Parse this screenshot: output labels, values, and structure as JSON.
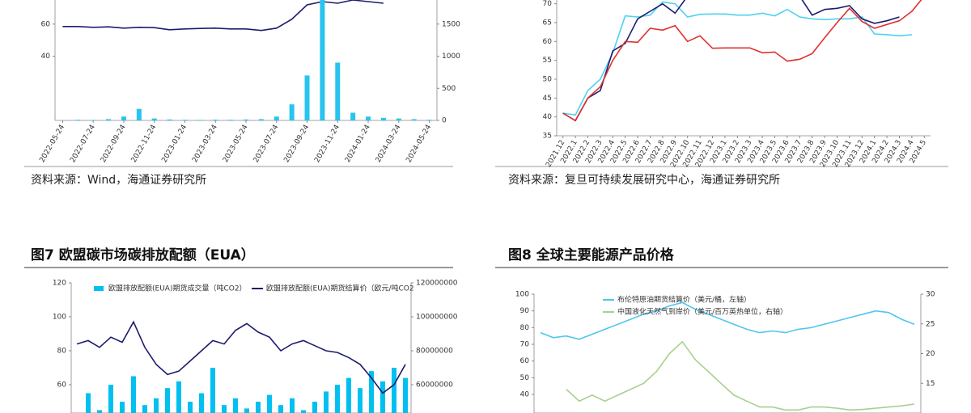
{
  "chart_data": [
    {
      "type": "combo",
      "categories": [
        "2022-05-24",
        null,
        "2022-07-24",
        null,
        "2022-09-24",
        null,
        "2022-11-24",
        null,
        "2023-01-24",
        null,
        "2023-03-24",
        null,
        "2023-05-24",
        null,
        "2023-07-24",
        null,
        "2023-09-24",
        null,
        "2023-11-24",
        null,
        "2024-01-24",
        null,
        "2024-03-24",
        null,
        "2024-05-24"
      ],
      "ylim": [
        0,
        75
      ],
      "yticks": [
        40,
        60
      ],
      "y2lim": [
        0,
        1875
      ],
      "y2ticks": [
        0,
        500,
        1000,
        1500
      ],
      "series": [
        {
          "type": "line",
          "color": "#1c1c6e",
          "values": [
            58.5,
            58.5,
            58,
            58.3,
            57.5,
            58,
            57.8,
            56.5,
            57,
            57.3,
            57.5,
            57,
            57,
            56,
            57.5,
            63,
            72,
            74,
            73,
            75,
            74,
            73,
            null,
            null,
            null
          ]
        },
        {
          "type": "bar",
          "axis": "y2",
          "color": "#29c3ef",
          "values": [
            5,
            10,
            8,
            20,
            60,
            180,
            30,
            15,
            10,
            8,
            12,
            10,
            15,
            20,
            60,
            250,
            700,
            1875,
            900,
            120,
            60,
            40,
            30,
            20,
            10
          ]
        }
      ],
      "source": "资料来源：Wind，海通证券研究所"
    },
    {
      "type": "line",
      "categories": [
        "2021.12",
        "2022.1",
        "2022.2",
        "2022.3",
        "2022.4",
        "2022.5",
        "2022.6",
        "2022.7",
        "2022.8",
        "2022.9",
        "2022.10",
        "2022.11",
        "2022.12",
        "2023.1",
        "2023.2",
        "2023.3",
        "2023.4",
        "2023.5",
        "2023.6",
        "2023.7",
        "2023.8",
        "2023.9",
        "2023.10",
        "2023.11",
        "2023.12",
        "2024.1",
        "2024.2",
        "2024.3",
        "2024.4",
        "2024.5"
      ],
      "ylim": [
        35,
        71
      ],
      "yticks": [
        35,
        40,
        45,
        50,
        55,
        60,
        65,
        70
      ],
      "series": [
        {
          "color": "#4dd2f0",
          "values": [
            41,
            40.5,
            47,
            50,
            57,
            66.8,
            66.5,
            67,
            70.5,
            70,
            66.5,
            67.2,
            67.3,
            67.3,
            67,
            67,
            67.5,
            66.8,
            68.5,
            66.5,
            66,
            65.8,
            66,
            66,
            66.5,
            62,
            61.8,
            61.5,
            61.8,
            null
          ]
        },
        {
          "color": "#1c1c6e",
          "values": [
            41,
            39,
            45,
            47,
            57.5,
            59.5,
            66,
            68,
            70,
            67.5,
            72,
            72,
            72,
            72,
            72,
            72,
            72,
            72,
            72,
            72,
            67,
            68.5,
            68.8,
            69.5,
            66,
            64.8,
            65.5,
            66.5,
            null,
            null
          ]
        },
        {
          "color": "#e03030",
          "values": [
            41,
            39,
            45,
            48,
            55,
            60,
            59.8,
            63.5,
            63,
            64.2,
            60,
            61.5,
            58.2,
            58.3,
            58.3,
            58.3,
            57,
            57.2,
            54.8,
            55.3,
            56.8,
            61,
            65,
            68.8,
            65.3,
            63.5,
            64.5,
            65.5,
            68,
            72
          ]
        }
      ],
      "source": "资料来源：复旦可持续发展研究中心，海通证券研究所"
    },
    {
      "type": "combo",
      "title": "图7 欧盟碳市场碳排放配额（EUA）",
      "ylim": [
        43.3,
        120
      ],
      "yticks": [
        60,
        80,
        100,
        120
      ],
      "y2lim": [
        43333333,
        120000000
      ],
      "y2ticks": [
        60000000,
        80000000,
        100000000,
        120000000
      ],
      "series": [
        {
          "type": "bar",
          "axis": "y2",
          "name": "欧盟排放配额(EUA)期货成交量（吨CO2）",
          "color": "#00c0f0",
          "values": [
            40000000,
            55000000,
            45000000,
            60000000,
            50000000,
            65000000,
            48000000,
            52000000,
            58000000,
            62000000,
            50000000,
            55000000,
            70000000,
            48000000,
            52000000,
            46000000,
            50000000,
            54000000,
            48000000,
            52000000,
            45000000,
            50000000,
            56000000,
            60000000,
            64000000,
            58000000,
            68000000,
            62000000,
            70000000,
            64000000
          ]
        },
        {
          "type": "line",
          "name": "欧盟排放配额(EUA)期货结算价（欧元/吨CO2",
          "color": "#1c1c6e",
          "values": [
            84,
            86,
            82,
            88,
            85,
            97,
            82,
            72,
            66,
            68,
            74,
            80,
            86,
            84,
            92,
            96,
            91,
            88,
            80,
            84,
            86,
            83,
            80,
            79,
            76,
            72,
            64,
            55,
            60,
            72
          ]
        }
      ]
    },
    {
      "type": "line",
      "title": "图8 全球主要能源产品价格",
      "ylim": [
        28.9,
        100
      ],
      "yticks": [
        40,
        50,
        60,
        70,
        80,
        90,
        100
      ],
      "y2lim": [
        10,
        30
      ],
      "y2ticks": [
        15,
        20,
        25,
        30
      ],
      "series": [
        {
          "name": "布伦特原油期货结算价（美元/桶，左轴）",
          "color": "#4fc6ee",
          "values": [
            77,
            74,
            75,
            73,
            76,
            79,
            82,
            85,
            88,
            90,
            93,
            95,
            91,
            88,
            85,
            82,
            79,
            77,
            78,
            77,
            79,
            80,
            82,
            84,
            86,
            88,
            90,
            89,
            85,
            82
          ]
        },
        {
          "name": "中国液化天然气到岸价（美元/百万英热单位，右轴）",
          "axis": "y2",
          "color": "#a8d08d",
          "values": [
            null,
            null,
            14,
            12,
            13,
            12,
            13,
            14,
            15,
            17,
            20,
            22,
            19,
            17,
            15,
            13,
            12,
            11,
            11,
            10.5,
            10.5,
            11,
            11,
            10.8,
            10.5,
            10.6,
            10.8,
            11,
            11.2,
            11.5
          ]
        }
      ]
    }
  ]
}
